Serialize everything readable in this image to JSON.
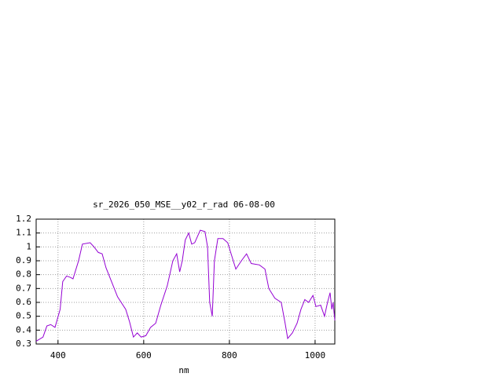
{
  "chart_data": {
    "type": "line",
    "title": "sr_2026_050_MSE__y02_r_rad 06-08-00",
    "x_label": "nm",
    "x": [
      349,
      365,
      374,
      383,
      393,
      405,
      411,
      420,
      429,
      435,
      448,
      457,
      475,
      484,
      494,
      503,
      512,
      521,
      539,
      558,
      567,
      576,
      585,
      594,
      605,
      616,
      628,
      640,
      655,
      668,
      677,
      684,
      690,
      697,
      705,
      712,
      719,
      732,
      743,
      749,
      754,
      760,
      765,
      773,
      785,
      796,
      815,
      828,
      840,
      851,
      870,
      883,
      892,
      906,
      921,
      930,
      936,
      947,
      958,
      967,
      976,
      985,
      995,
      1002,
      1013,
      1022,
      1029,
      1035,
      1039,
      1042,
      1046
    ],
    "series": [
      {
        "color": "#9400d3",
        "values": [
          0.32,
          0.35,
          0.43,
          0.44,
          0.42,
          0.55,
          0.75,
          0.79,
          0.78,
          0.77,
          0.9,
          1.02,
          1.03,
          1.0,
          0.96,
          0.95,
          0.85,
          0.78,
          0.64,
          0.55,
          0.46,
          0.35,
          0.38,
          0.35,
          0.36,
          0.42,
          0.45,
          0.58,
          0.72,
          0.9,
          0.95,
          0.82,
          0.9,
          1.05,
          1.1,
          1.02,
          1.03,
          1.12,
          1.11,
          1.0,
          0.6,
          0.5,
          0.9,
          1.06,
          1.06,
          1.03,
          0.84,
          0.9,
          0.95,
          0.88,
          0.87,
          0.84,
          0.7,
          0.63,
          0.6,
          0.45,
          0.34,
          0.38,
          0.45,
          0.55,
          0.62,
          0.6,
          0.65,
          0.57,
          0.58,
          0.5,
          0.6,
          0.67,
          0.55,
          0.6,
          0.47
        ]
      }
    ],
    "xlim": [
      349,
      1046
    ],
    "xticks": [
      400,
      600,
      800,
      1000
    ],
    "ylim": [
      0.3,
      1.2
    ],
    "yticks": [
      0.3,
      0.4,
      0.5,
      0.6,
      0.7,
      0.8,
      0.9,
      1,
      1.1,
      1.2
    ],
    "grid": true
  }
}
